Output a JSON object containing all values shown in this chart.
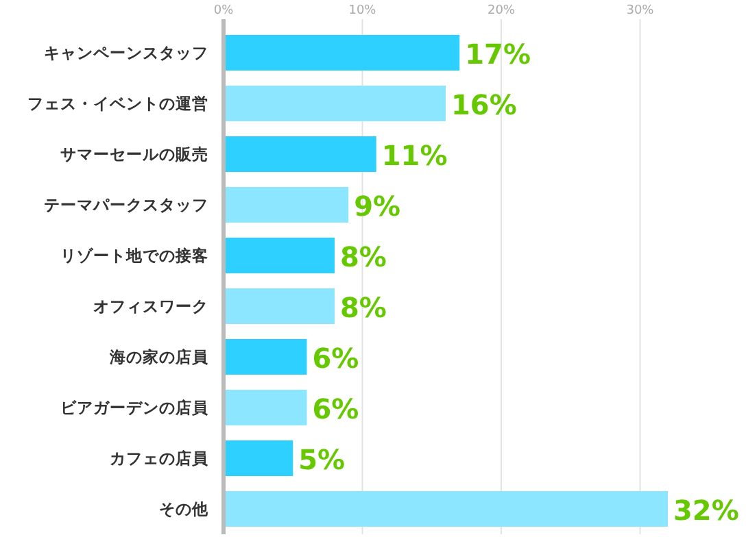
{
  "chart_data": {
    "type": "bar",
    "orientation": "horizontal",
    "categories": [
      "キャンペーンスタッフ",
      "フェス・イベントの運営",
      "サマーセールの販売",
      "テーマパークスタッフ",
      "リゾート地での接客",
      "オフィスワーク",
      "海の家の店員",
      "ビアガーデンの店員",
      "カフェの店員",
      "その他"
    ],
    "values": [
      17,
      16,
      11,
      9,
      8,
      8,
      6,
      6,
      5,
      32
    ],
    "colors": [
      "#2ed0ff",
      "#8de6ff",
      "#2ed0ff",
      "#8de6ff",
      "#2ed0ff",
      "#8de6ff",
      "#2ed0ff",
      "#8de6ff",
      "#2ed0ff",
      "#8de6ff"
    ],
    "value_labels": [
      "17%",
      "16%",
      "11%",
      "9%",
      "8%",
      "8%",
      "6%",
      "6%",
      "5%",
      "32%"
    ],
    "xlim": [
      0,
      32
    ],
    "xticks": [
      {
        "value": 0,
        "label": "0%"
      },
      {
        "value": 10,
        "label": "10%"
      },
      {
        "value": 20,
        "label": "20%"
      },
      {
        "value": 30,
        "label": "30%"
      }
    ],
    "grid": "x"
  }
}
